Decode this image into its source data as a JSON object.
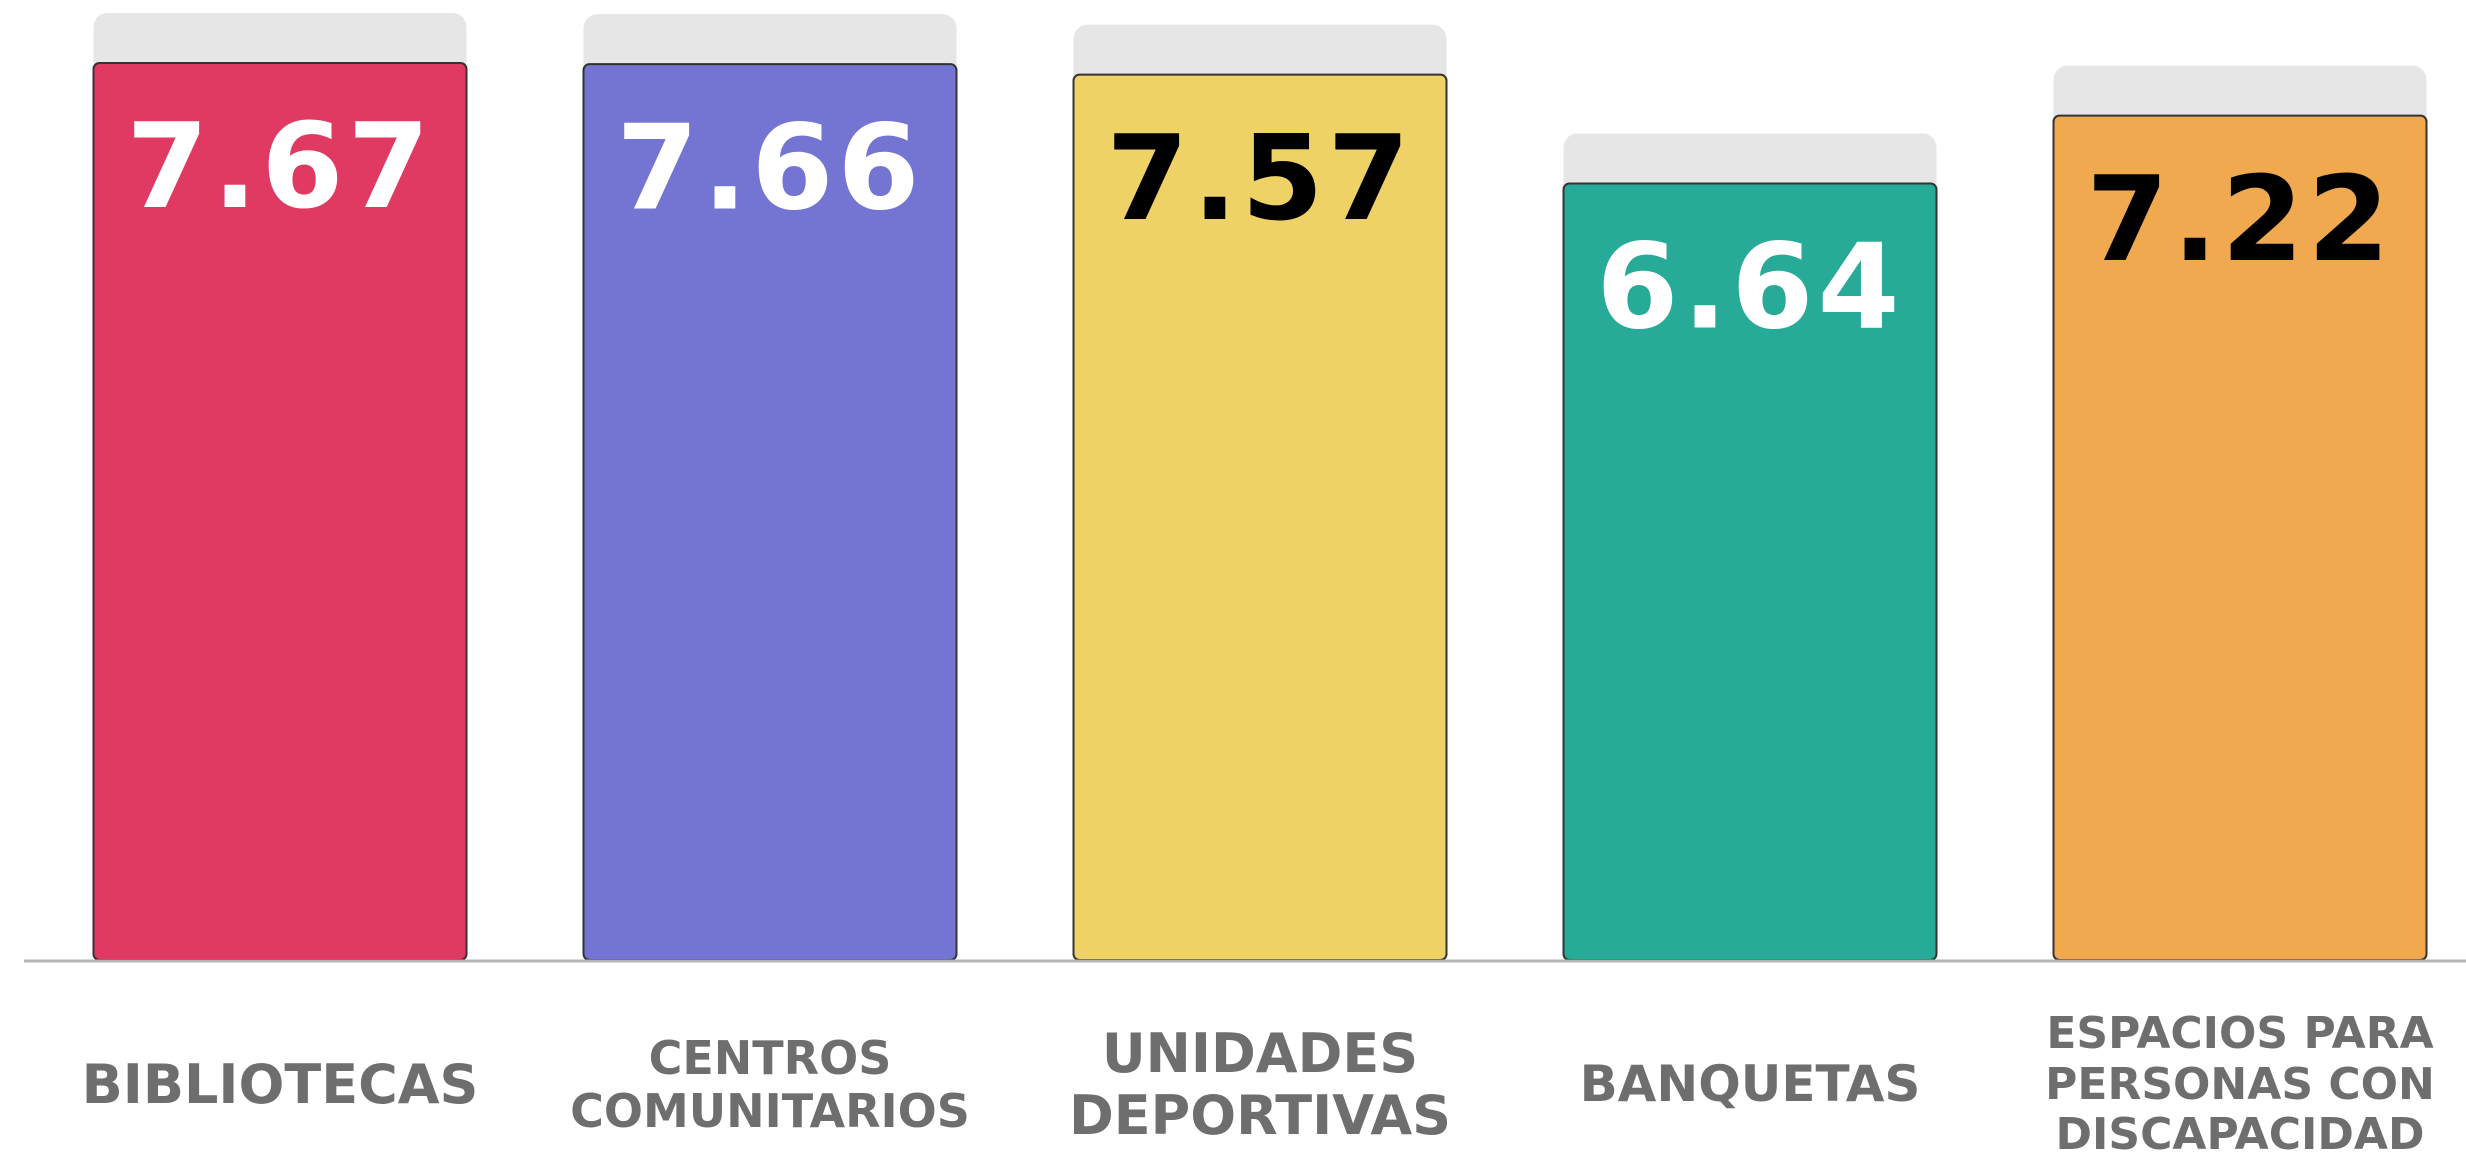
{
  "chart_data": {
    "type": "bar",
    "categories": [
      "BIBLIOTECAS",
      "CENTROS\nCOMUNITARIOS",
      "UNIDADES\nDEPORTIVAS",
      "BANQUETAS",
      "ESPACIOS PARA\nPERSONAS CON\nDISCAPACIDAD"
    ],
    "values": [
      7.67,
      7.66,
      7.57,
      6.64,
      7.22
    ],
    "colors": [
      "#e03a63",
      "#7474d2",
      "#efd265",
      "#27aa97",
      "#f0a94f"
    ],
    "label_colors": [
      "#ffffff",
      "#ffffff",
      "#000000",
      "#ffffff",
      "#000000"
    ],
    "ylim": [
      0,
      8.2
    ]
  }
}
